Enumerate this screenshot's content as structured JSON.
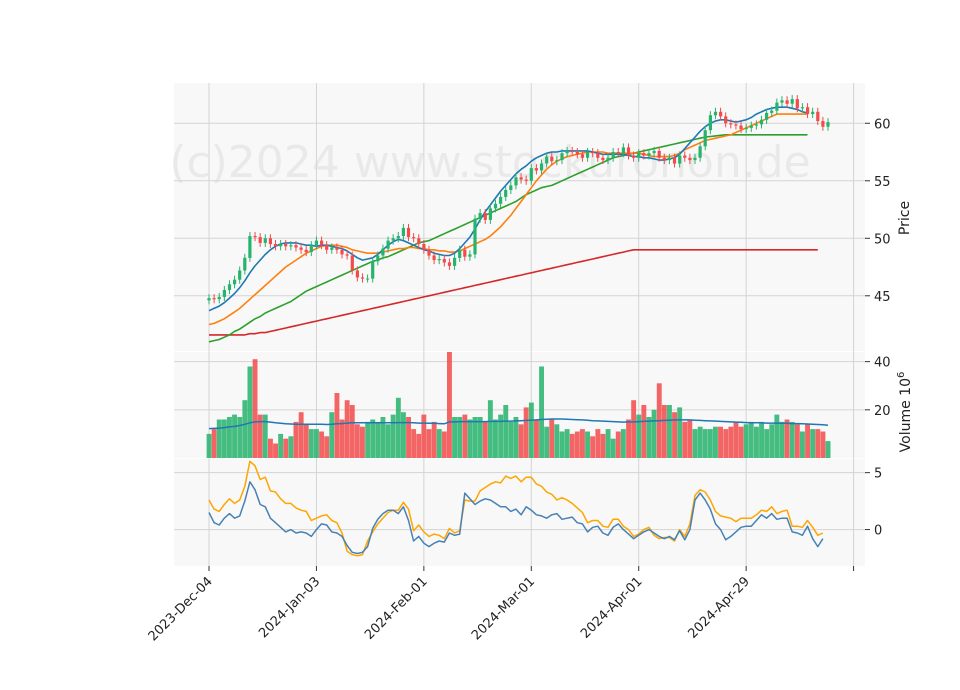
{
  "chart_data": {
    "type": "candlestick",
    "watermark": "(c)2024 www.stockuronon.de",
    "ylabel_price": "Price",
    "ylabel_volume": "Volume 10",
    "ylabel_volume_exp": "6",
    "x_tick_labels": [
      "2023-Dec-04",
      "2024-Jan-03",
      "2024-Feb-01",
      "2024-Mar-01",
      "2024-Apr-01",
      "2024-Apr-29"
    ],
    "x_tick_index": [
      0,
      21,
      42,
      63,
      84,
      105
    ],
    "price_ticks": [
      45,
      50,
      55,
      60
    ],
    "price_ylim": [
      40.2,
      63.5
    ],
    "volume_ticks": [
      20,
      40
    ],
    "volume_ylim": [
      0,
      44
    ],
    "osc_ticks": [
      0,
      5
    ],
    "osc_ylim": [
      -3.2,
      6.2
    ],
    "colors": {
      "up": "#26b36b",
      "down": "#f24b4b",
      "ma_fast": "#1f77b4",
      "ma_mid": "#ff7f0e",
      "ma_slow": "#2ca02c",
      "ma_long": "#d62728",
      "vol_avg": "#1f77b4",
      "osc_main": "#4682b4",
      "osc_signal": "#ffa500",
      "grid": "#d4d4d4",
      "panel_bg": "#f8f8f8"
    },
    "series": [
      {
        "name": "close",
        "values": [
          44.8,
          44.7,
          44.9,
          45.5,
          46.0,
          46.4,
          47.2,
          48.3,
          50.2,
          50.1,
          49.6,
          50.0,
          49.5,
          49.3,
          49.5,
          49.3,
          49.4,
          49.2,
          49.0,
          48.8,
          49.4,
          49.8,
          49.4,
          49.0,
          49.2,
          49.0,
          48.6,
          48.5,
          47.2,
          46.6,
          46.5,
          46.5,
          48.0,
          48.5,
          49.1,
          49.8,
          50.0,
          50.2,
          50.9,
          50.1,
          50.0,
          49.5,
          49.0,
          48.5,
          48.1,
          48.2,
          47.9,
          47.6,
          48.3,
          49.0,
          48.4,
          48.6,
          51.7,
          52.2,
          51.6,
          52.6,
          53.0,
          53.6,
          54.2,
          54.6,
          55.3,
          55.1,
          55.0,
          56.1,
          55.9,
          56.5,
          57.1,
          56.7,
          56.8,
          57.4,
          57.6,
          57.5,
          57.3,
          57.0,
          57.5,
          57.4,
          57.0,
          56.8,
          57.0,
          57.5,
          57.4,
          57.9,
          57.2,
          57.0,
          57.4,
          57.2,
          57.4,
          57.6,
          57.0,
          56.8,
          57.0,
          56.5,
          57.2,
          57.0,
          56.8,
          57.0,
          58.0,
          59.4,
          60.7,
          61.0,
          60.6,
          60.0,
          59.9,
          59.8,
          59.5,
          59.6,
          59.8,
          59.9,
          60.3,
          60.9,
          61.1,
          61.8,
          62.0,
          61.7,
          62.1,
          61.3,
          61.4,
          60.8,
          61.0,
          60.2,
          59.7,
          60.1
        ]
      },
      {
        "name": "ma_fast",
        "values": [
          43.7,
          43.9,
          44.1,
          44.4,
          44.8,
          45.2,
          45.7,
          46.3,
          47.0,
          47.6,
          48.1,
          48.6,
          49.0,
          49.3,
          49.5,
          49.6,
          49.6,
          49.6,
          49.5,
          49.4,
          49.4,
          49.3,
          49.4,
          49.4,
          49.3,
          49.2,
          49.1,
          48.9,
          48.6,
          48.3,
          48.1,
          48.2,
          48.3,
          48.6,
          49.0,
          49.4,
          49.7,
          49.9,
          49.8,
          49.6,
          49.4,
          49.2,
          49.0,
          48.9,
          48.7,
          48.6,
          48.5,
          48.5,
          48.7,
          49.1,
          49.6,
          50.1,
          50.8,
          51.6,
          52.3,
          52.9,
          53.5,
          54.1,
          54.6,
          55.1,
          55.6,
          56.0,
          56.3,
          56.7,
          57.0,
          57.2,
          57.4,
          57.5,
          57.5,
          57.6,
          57.6,
          57.6,
          57.6,
          57.6,
          57.6,
          57.5,
          57.4,
          57.3,
          57.3,
          57.3,
          57.3,
          57.3,
          57.2,
          57.1,
          57.1,
          57.0,
          57.0,
          56.9,
          56.8,
          56.8,
          56.9,
          57.0,
          57.3,
          57.8,
          58.3,
          58.8,
          59.3,
          59.7,
          60.0,
          60.2,
          60.3,
          60.3,
          60.2,
          60.1,
          60.2,
          60.3,
          60.5,
          60.8,
          61.0,
          61.2,
          61.3,
          61.4,
          61.4,
          61.4,
          61.3,
          61.2,
          61.0,
          60.9
        ]
      },
      {
        "name": "ma_mid",
        "values": [
          42.5,
          42.6,
          42.8,
          43.0,
          43.3,
          43.6,
          43.9,
          44.3,
          44.7,
          45.1,
          45.5,
          45.9,
          46.3,
          46.7,
          47.1,
          47.5,
          47.8,
          48.1,
          48.4,
          48.7,
          48.9,
          49.1,
          49.3,
          49.4,
          49.4,
          49.4,
          49.3,
          49.2,
          49.0,
          48.9,
          48.8,
          48.7,
          48.7,
          48.7,
          48.8,
          48.9,
          49.0,
          49.1,
          49.1,
          49.2,
          49.2,
          49.1,
          49.1,
          49.0,
          49.0,
          48.9,
          48.9,
          48.8,
          48.8,
          48.9,
          49.1,
          49.3,
          49.5,
          49.7,
          49.9,
          50.2,
          50.6,
          51.0,
          51.5,
          52.0,
          52.6,
          53.2,
          53.8,
          54.4,
          55.0,
          55.5,
          56.0,
          56.4,
          56.7,
          56.9,
          57.1,
          57.2,
          57.3,
          57.4,
          57.5,
          57.5,
          57.5,
          57.5,
          57.4,
          57.4,
          57.4,
          57.4,
          57.4,
          57.4,
          57.4,
          57.3,
          57.2,
          57.1,
          57.1,
          57.1,
          57.1,
          57.2,
          57.4,
          57.7,
          57.9,
          58.1,
          58.3,
          58.5,
          58.6,
          58.7,
          58.8,
          58.9,
          59.0,
          59.2,
          59.4,
          59.6,
          59.8,
          60.0,
          60.2,
          60.4,
          60.6,
          60.8,
          60.8,
          60.8,
          60.8,
          60.8,
          60.8,
          60.8
        ]
      },
      {
        "name": "ma_slow",
        "values": [
          41.0,
          41.1,
          41.2,
          41.4,
          41.6,
          41.9,
          42.1,
          42.4,
          42.7,
          43.0,
          43.2,
          43.5,
          43.7,
          43.9,
          44.1,
          44.3,
          44.5,
          44.8,
          45.1,
          45.4,
          45.6,
          45.8,
          46.0,
          46.2,
          46.4,
          46.6,
          46.8,
          47.0,
          47.2,
          47.4,
          47.6,
          47.8,
          48.0,
          48.1,
          48.3,
          48.4,
          48.6,
          48.8,
          49.0,
          49.2,
          49.4,
          49.6,
          49.7,
          49.8,
          50.0,
          50.2,
          50.4,
          50.6,
          50.8,
          51.0,
          51.2,
          51.4,
          51.6,
          51.8,
          52.0,
          52.2,
          52.4,
          52.6,
          52.8,
          53.0,
          53.2,
          53.5,
          53.8,
          54.0,
          54.2,
          54.4,
          54.5,
          54.6,
          54.8,
          55.0,
          55.2,
          55.4,
          55.6,
          55.8,
          56.0,
          56.2,
          56.4,
          56.6,
          56.8,
          57.0,
          57.1,
          57.2,
          57.3,
          57.4,
          57.5,
          57.6,
          57.7,
          57.8,
          57.9,
          58.0,
          58.1,
          58.2,
          58.3,
          58.4,
          58.5,
          58.6,
          58.7,
          58.8,
          58.85,
          58.9,
          58.95,
          59.0,
          59.0,
          59.0,
          59.0,
          59.0,
          59.0,
          59.0,
          59.0,
          59.0,
          59.0,
          59.0,
          59.0,
          59.0,
          59.0,
          59.0,
          59.0,
          59.0
        ]
      },
      {
        "name": "ma_long",
        "values": [
          41.6,
          41.6,
          41.6,
          41.6,
          41.6,
          41.6,
          41.6,
          41.6,
          41.7,
          41.7,
          41.8,
          41.8,
          41.9,
          42.0,
          42.1,
          42.2,
          42.3,
          42.4,
          42.5,
          42.6,
          42.7,
          42.8,
          42.9,
          43.0,
          43.1,
          43.2,
          43.3,
          43.4,
          43.5,
          43.6,
          43.7,
          43.8,
          43.9,
          44.0,
          44.1,
          44.2,
          44.3,
          44.4,
          44.5,
          44.6,
          44.7,
          44.8,
          44.9,
          45.0,
          45.1,
          45.2,
          45.3,
          45.4,
          45.5,
          45.6,
          45.7,
          45.8,
          45.9,
          46.0,
          46.1,
          46.2,
          46.3,
          46.4,
          46.5,
          46.6,
          46.7,
          46.8,
          46.9,
          47.0,
          47.1,
          47.2,
          47.3,
          47.4,
          47.5,
          47.6,
          47.7,
          47.8,
          47.9,
          48.0,
          48.1,
          48.2,
          48.3,
          48.4,
          48.5,
          48.6,
          48.7,
          48.8,
          48.9,
          49.0,
          49.0,
          49.0,
          49.0,
          49.0,
          49.0,
          49.0,
          49.0,
          49.0,
          49.0,
          49.0,
          49.0,
          49.0,
          49.0,
          49.0,
          49.0,
          49.0,
          49.0,
          49.0,
          49.0,
          49.0,
          49.0,
          49.0,
          49.0,
          49.0,
          49.0,
          49.0,
          49.0,
          49.0,
          49.0,
          49.0,
          49.0,
          49.0,
          49.0,
          49.0,
          49.0,
          49.0
        ]
      },
      {
        "name": "volume",
        "values": [
          10,
          12,
          16,
          16,
          17,
          18,
          17,
          24,
          38,
          41,
          18,
          18,
          8,
          6,
          10,
          8,
          9,
          15,
          19,
          14,
          12,
          12,
          11,
          9,
          19,
          27,
          16,
          24,
          22,
          14,
          13,
          15,
          16,
          15,
          17,
          14,
          18,
          25,
          19,
          17,
          12,
          10,
          18,
          12,
          15,
          12,
          11,
          44,
          17,
          17,
          18,
          16,
          17,
          17,
          15,
          24,
          16,
          18,
          22,
          15,
          17,
          14,
          21,
          23,
          16,
          38,
          13,
          16,
          14,
          11,
          12,
          10,
          11,
          12,
          11,
          9,
          12,
          10,
          12,
          8,
          11,
          12,
          16,
          24,
          18,
          22,
          17,
          20,
          31,
          22,
          22,
          19,
          21,
          15,
          16,
          12,
          13,
          12,
          12,
          13,
          13,
          12,
          13,
          15,
          13,
          14,
          15,
          13,
          15,
          12,
          14,
          18,
          15,
          16,
          15,
          14,
          11,
          14,
          12,
          12,
          11,
          7
        ]
      },
      {
        "name": "vol_avg",
        "values": [
          12.2,
          12.3,
          12.4,
          12.6,
          12.9,
          13.1,
          13.5,
          14.0,
          14.6,
          15.0,
          15.1,
          15.1,
          14.9,
          14.6,
          14.4,
          14.2,
          14.1,
          14.0,
          14.0,
          14.0,
          14.0,
          14.0,
          14.0,
          13.9,
          14.0,
          14.2,
          14.3,
          14.5,
          14.6,
          14.6,
          14.6,
          14.6,
          14.6,
          14.6,
          14.6,
          14.6,
          14.6,
          14.7,
          14.7,
          14.7,
          14.6,
          14.5,
          14.5,
          14.4,
          14.4,
          14.3,
          14.2,
          15.0,
          15.0,
          15.1,
          15.1,
          15.1,
          15.1,
          15.1,
          15.1,
          15.2,
          15.2,
          15.2,
          15.3,
          15.3,
          15.4,
          15.5,
          15.6,
          15.7,
          15.8,
          16.0,
          16.1,
          16.2,
          16.2,
          16.2,
          16.1,
          16.0,
          15.9,
          15.8,
          15.7,
          15.5,
          15.4,
          15.3,
          15.2,
          15.1,
          15.0,
          14.9,
          15.0,
          15.0,
          15.1,
          15.2,
          15.3,
          15.4,
          15.5,
          15.6,
          15.7,
          15.8,
          15.8,
          15.8,
          15.8,
          15.7,
          15.6,
          15.5,
          15.4,
          15.3,
          15.2,
          15.1,
          15.0,
          14.9,
          14.8,
          14.7,
          14.6,
          14.6,
          14.6,
          14.5,
          14.5,
          14.5,
          14.4,
          14.4,
          14.3,
          14.3,
          14.2,
          14.1,
          14.0,
          13.9,
          13.8,
          13.6
        ]
      },
      {
        "name": "osc_main",
        "values": [
          1.5,
          0.6,
          0.4,
          1.0,
          1.4,
          1.0,
          1.2,
          2.5,
          4.2,
          3.5,
          2.2,
          2.0,
          1.0,
          0.6,
          0.2,
          -0.2,
          0.0,
          -0.3,
          -0.2,
          -0.3,
          -0.6,
          0.0,
          0.5,
          0.4,
          -0.2,
          -0.3,
          -0.6,
          -1.4,
          -2.0,
          -2.1,
          -2.0,
          -1.5,
          0.1,
          0.9,
          1.4,
          1.7,
          1.7,
          1.4,
          2.0,
          0.8,
          -1.0,
          -0.6,
          -1.2,
          -1.5,
          -1.2,
          -1.0,
          -1.1,
          -0.3,
          -0.5,
          -0.4,
          3.2,
          2.7,
          2.2,
          2.5,
          2.7,
          2.6,
          2.3,
          2.0,
          2.0,
          1.6,
          1.8,
          1.3,
          2.0,
          1.7,
          1.3,
          1.2,
          1.0,
          1.3,
          1.4,
          0.9,
          1.0,
          1.1,
          0.6,
          0.5,
          -0.2,
          0.2,
          0.3,
          -0.3,
          -0.5,
          0.2,
          0.5,
          0.0,
          -0.4,
          -0.8,
          -0.5,
          -0.2,
          0.0,
          -0.3,
          -0.6,
          -0.8,
          -0.6,
          -0.9,
          -0.1,
          -0.9,
          0.0,
          2.6,
          3.2,
          2.6,
          1.8,
          0.5,
          0.0,
          -0.9,
          -0.6,
          -0.2,
          0.2,
          0.3,
          0.3,
          0.8,
          1.3,
          1.0,
          1.4,
          0.9,
          1.0,
          1.0,
          -0.2,
          -0.3,
          -0.5,
          0.3,
          -0.8,
          -1.5,
          -0.8
        ]
      },
      {
        "name": "osc_signal",
        "values": [
          2.6,
          1.8,
          1.6,
          2.2,
          2.7,
          2.3,
          2.6,
          3.8,
          6.0,
          5.6,
          4.4,
          4.6,
          3.4,
          3.3,
          2.7,
          2.3,
          2.3,
          1.9,
          1.7,
          1.6,
          0.8,
          1.0,
          1.2,
          1.3,
          0.8,
          0.6,
          -0.3,
          -1.9,
          -2.2,
          -2.3,
          -2.2,
          -1.0,
          -0.2,
          0.5,
          1.0,
          1.5,
          1.7,
          1.7,
          2.4,
          1.8,
          -0.1,
          0.4,
          -0.2,
          -0.6,
          -0.4,
          -0.5,
          -0.8,
          0.1,
          -0.3,
          -0.1,
          2.6,
          2.5,
          2.5,
          3.4,
          3.7,
          4.0,
          4.2,
          4.1,
          4.7,
          4.5,
          4.7,
          4.2,
          4.6,
          4.6,
          4.0,
          3.8,
          3.3,
          3.1,
          2.6,
          2.8,
          2.6,
          2.3,
          1.9,
          1.5,
          0.6,
          0.8,
          0.8,
          0.3,
          0.2,
          0.9,
          0.9,
          0.3,
          0.0,
          -0.6,
          -0.4,
          0.0,
          0.2,
          -0.5,
          -0.8,
          -0.7,
          -0.7,
          -1.0,
          0.0,
          -0.6,
          0.5,
          3.0,
          3.5,
          3.3,
          2.6,
          1.6,
          1.2,
          1.1,
          1.0,
          0.7,
          1.0,
          1.0,
          1.0,
          1.3,
          1.7,
          1.6,
          2.0,
          1.4,
          1.6,
          1.7,
          0.3,
          0.3,
          0.2,
          0.8,
          0.2,
          -0.5,
          -0.3
        ]
      }
    ]
  }
}
